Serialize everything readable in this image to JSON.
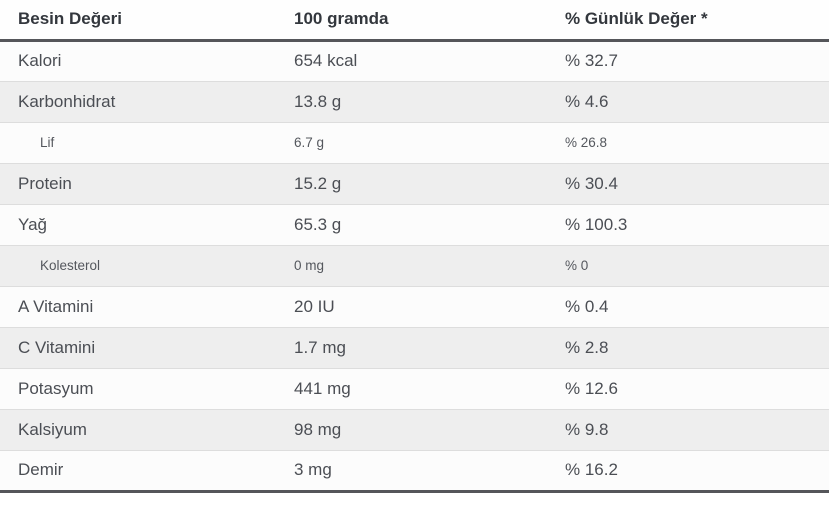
{
  "table": {
    "headers": [
      {
        "label": "Besin Değeri"
      },
      {
        "label": "100 gramda"
      },
      {
        "label": "% Günlük Değer *"
      }
    ],
    "rows": [
      {
        "name": "Kalori",
        "amount": "654 kcal",
        "daily": "% 32.7",
        "sub": false
      },
      {
        "name": "Karbonhidrat",
        "amount": "13.8 g",
        "daily": "% 4.6",
        "sub": false
      },
      {
        "name": "Lif",
        "amount": "6.7 g",
        "daily": "% 26.8",
        "sub": true
      },
      {
        "name": "Protein",
        "amount": "15.2 g",
        "daily": "% 30.4",
        "sub": false
      },
      {
        "name": "Yağ",
        "amount": "65.3 g",
        "daily": "% 100.3",
        "sub": false
      },
      {
        "name": "Kolesterol",
        "amount": "0 mg",
        "daily": "% 0",
        "sub": true
      },
      {
        "name": "A Vitamini",
        "amount": "20 IU",
        "daily": "% 0.4",
        "sub": false
      },
      {
        "name": "C Vitamini",
        "amount": "1.7 mg",
        "daily": "% 2.8",
        "sub": false
      },
      {
        "name": "Potasyum",
        "amount": "441 mg",
        "daily": "% 12.6",
        "sub": false
      },
      {
        "name": "Kalsiyum",
        "amount": "98 mg",
        "daily": "% 9.8",
        "sub": false
      },
      {
        "name": "Demir",
        "amount": "3 mg",
        "daily": "% 16.2",
        "sub": false
      }
    ],
    "colors": {
      "zebra_row_bg": "#eeeeee",
      "plain_row_bg": "#fcfcfc",
      "row_divider": "#dddddd",
      "heavy_rule": "#55565a",
      "body_text": "#4b4e54",
      "header_text": "#33373d"
    }
  }
}
